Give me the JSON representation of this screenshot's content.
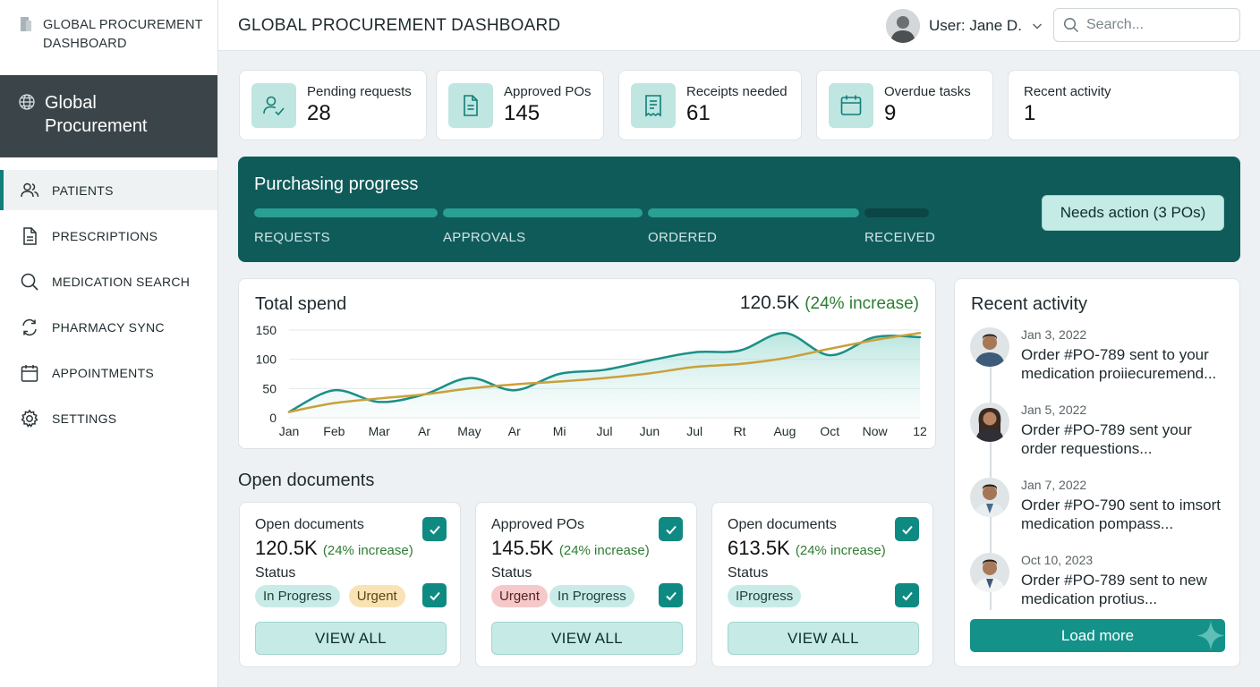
{
  "app": {
    "brand_title": "GLOBAL PROCUREMENT\nDASHBOARD",
    "banner_title": "Global\nProcurement",
    "page_title": "GLOBAL PROCUREMENT DASHBOARD"
  },
  "sidebar": {
    "items": [
      {
        "label": "PATIENTS",
        "icon": "users-icon",
        "active": true
      },
      {
        "label": "PRESCRIPTIONS",
        "icon": "document-icon"
      },
      {
        "label": "MEDICATION SEARCH",
        "icon": "search-icon"
      },
      {
        "label": "PHARMACY SYNC",
        "icon": "sync-icon"
      },
      {
        "label": "APPOINTMENTS",
        "icon": "calendar-icon"
      },
      {
        "label": "SETTINGS",
        "icon": "gear-icon"
      }
    ]
  },
  "header": {
    "user_label": "User: Jane D.",
    "search_placeholder": "Search..."
  },
  "stats": [
    {
      "label": "Pending requests",
      "value": "28",
      "icon": "user-check-icon"
    },
    {
      "label": "Approved POs",
      "value": "145",
      "icon": "document-icon"
    },
    {
      "label": "Receipts needed",
      "value": "61",
      "icon": "receipt-icon"
    },
    {
      "label": "Overdue tasks",
      "value": "9",
      "icon": "calendar-icon"
    },
    {
      "label": "Recent activity",
      "value": "1"
    }
  ],
  "progress": {
    "title": "Purchasing progress",
    "stages": [
      "REQUESTS",
      "APPROVALS",
      "ORDERED",
      "RECEIVED"
    ],
    "completed_stages": 3,
    "action_label": "Needs action (3 POs)"
  },
  "spend": {
    "title": "Total spend",
    "total": "120.5K",
    "change": "(24% increase)"
  },
  "chart_data": {
    "type": "line",
    "categories": [
      "Jan",
      "Feb",
      "Mar",
      "Ar",
      "May",
      "Ar",
      "Mi",
      "Jul",
      "Jun",
      "Jul",
      "Rt",
      "Aug",
      "Oct",
      "Now",
      "12"
    ],
    "ylim": [
      0,
      150
    ],
    "yticks": [
      "150",
      "100",
      "50",
      "0"
    ],
    "grid": true,
    "series": [
      {
        "values": [
          10,
          47,
          27,
          40,
          68,
          47,
          75,
          82,
          98,
          112,
          115,
          145,
          107,
          138,
          138
        ],
        "color": "#1a8f87",
        "fill": true
      },
      {
        "values": [
          10,
          25,
          33,
          40,
          50,
          57,
          62,
          68,
          76,
          87,
          92,
          102,
          118,
          133,
          145
        ],
        "color": "#c9a13a"
      }
    ]
  },
  "documents": {
    "section_title": "Open documents",
    "cards": [
      {
        "label": "Open documents",
        "amount": "120.5K",
        "change": "(24% increase)",
        "status_label": "Status",
        "badges": [
          {
            "text": "In Progress",
            "tone": "teal"
          },
          {
            "text": "Urgent",
            "tone": "amber"
          }
        ],
        "button": "VIEW ALL"
      },
      {
        "label": "Approved POs",
        "amount": "145.5K",
        "change": "(24% increase)",
        "status_label": "Status",
        "badges": [
          {
            "text": "Urgent",
            "tone": "red"
          },
          {
            "text": "In Progress",
            "tone": "teal"
          }
        ],
        "button": "VIEW ALL"
      },
      {
        "label": "Open documents",
        "amount": "613.5K",
        "change": "(24% increase)",
        "status_label": "Status",
        "badges": [
          {
            "text": "IProgress",
            "tone": "teal"
          }
        ],
        "button": "VIEW ALL"
      }
    ]
  },
  "activity": {
    "title": "Recent activity",
    "items": [
      {
        "date": "Jan 3, 2022",
        "text": "Order #PO-789 sent to your medication proiiecuremend..."
      },
      {
        "date": "Jan 5, 2022",
        "text": "Order #PO-789 sent your order requestions..."
      },
      {
        "date": "Jan 7, 2022",
        "text": "Order #PO-790 sent to imsort medication pompass..."
      },
      {
        "date": "Oct 10, 2023",
        "text": "Order #PO-789 sent to new medication protius..."
      }
    ],
    "load_more": "Load more"
  },
  "colors": {
    "accent": "#127e78",
    "banner": "#0f5b5a",
    "sidebar_banner": "#3b4549",
    "increase": "#2e7d32"
  }
}
